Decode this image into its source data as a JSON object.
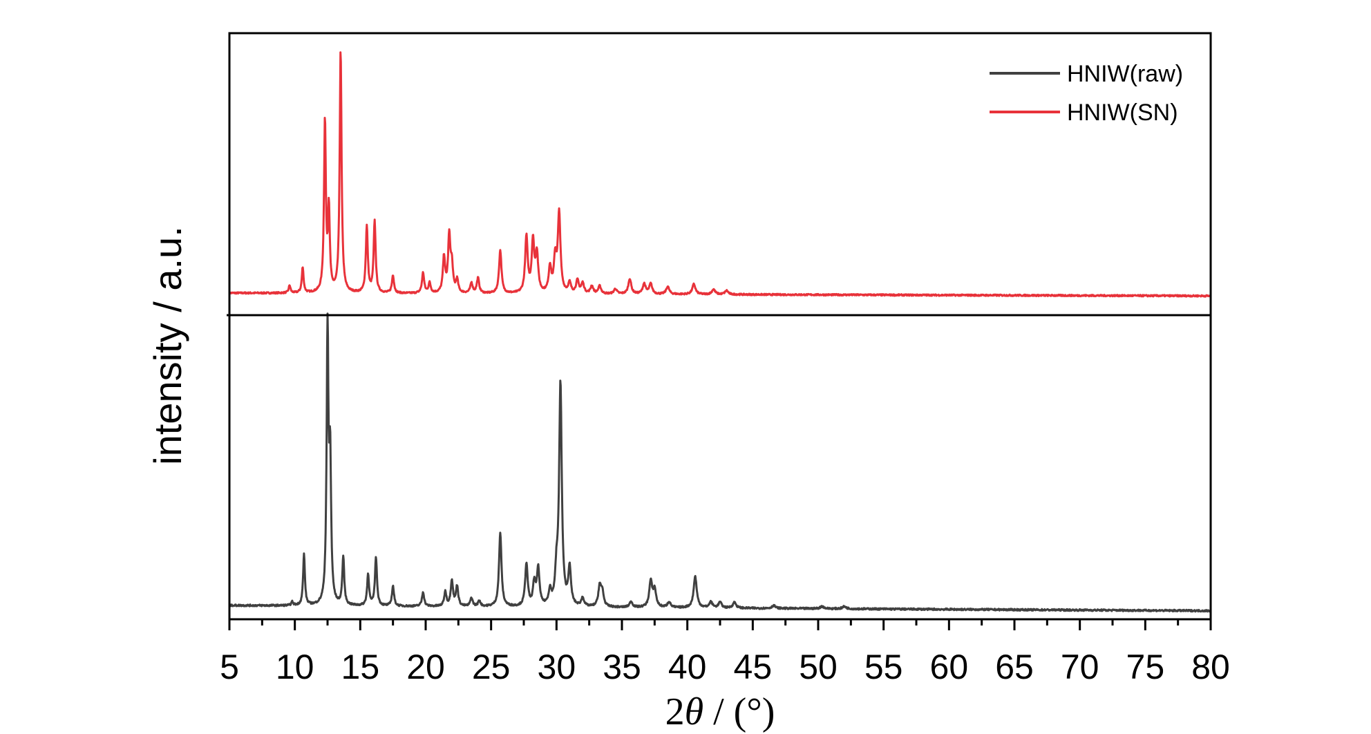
{
  "chart_data": {
    "type": "line",
    "xlabel_prefix": "2",
    "xlabel_symbol": "θ",
    "xlabel_suffix": " / (°)",
    "ylabel": "intensity / a.u.",
    "xlim": [
      5,
      80
    ],
    "xticks": [
      5,
      10,
      15,
      20,
      25,
      30,
      35,
      40,
      45,
      50,
      55,
      60,
      65,
      70,
      75,
      80
    ],
    "legend_position": "top-right",
    "series": [
      {
        "name": "HNIW(SN)",
        "color": "#e8323a",
        "panel": "top",
        "ylim": [
          0,
          1.0
        ],
        "baseline": 0.032,
        "baseline_slope": -0.00015,
        "peaks": [
          [
            9.6,
            0.03
          ],
          [
            10.6,
            0.1
          ],
          [
            12.3,
            0.67
          ],
          [
            12.6,
            0.32
          ],
          [
            13.5,
            0.95
          ],
          [
            15.5,
            0.26
          ],
          [
            16.1,
            0.28
          ],
          [
            17.5,
            0.07
          ],
          [
            19.8,
            0.08
          ],
          [
            20.3,
            0.04
          ],
          [
            21.4,
            0.14
          ],
          [
            21.8,
            0.22
          ],
          [
            22.0,
            0.1
          ],
          [
            22.4,
            0.05
          ],
          [
            23.5,
            0.04
          ],
          [
            24.0,
            0.06
          ],
          [
            25.7,
            0.17
          ],
          [
            27.7,
            0.22
          ],
          [
            28.2,
            0.2
          ],
          [
            28.5,
            0.15
          ],
          [
            29.5,
            0.1
          ],
          [
            29.9,
            0.13
          ],
          [
            30.2,
            0.31
          ],
          [
            31.0,
            0.04
          ],
          [
            31.6,
            0.05
          ],
          [
            32.0,
            0.04
          ],
          [
            32.7,
            0.03
          ],
          [
            33.3,
            0.03
          ],
          [
            34.5,
            0.02
          ],
          [
            35.6,
            0.06
          ],
          [
            36.7,
            0.04
          ],
          [
            37.2,
            0.04
          ],
          [
            38.5,
            0.03
          ],
          [
            40.5,
            0.04
          ],
          [
            42.0,
            0.02
          ],
          [
            43.0,
            0.015
          ]
        ]
      },
      {
        "name": "HNIW(raw)",
        "color": "#404040",
        "panel": "bottom",
        "ylim": [
          0,
          1.0
        ],
        "baseline": 0.07,
        "baseline_slope": -0.00025,
        "peaks": [
          [
            9.8,
            0.012
          ],
          [
            10.7,
            0.18
          ],
          [
            12.5,
            0.95
          ],
          [
            12.7,
            0.48
          ],
          [
            13.7,
            0.17
          ],
          [
            15.6,
            0.11
          ],
          [
            16.2,
            0.17
          ],
          [
            17.5,
            0.07
          ],
          [
            19.8,
            0.05
          ],
          [
            21.5,
            0.05
          ],
          [
            22.0,
            0.09
          ],
          [
            22.4,
            0.07
          ],
          [
            23.5,
            0.03
          ],
          [
            24.1,
            0.02
          ],
          [
            25.7,
            0.26
          ],
          [
            27.7,
            0.15
          ],
          [
            28.3,
            0.08
          ],
          [
            28.6,
            0.13
          ],
          [
            29.5,
            0.05
          ],
          [
            30.0,
            0.1
          ],
          [
            30.3,
            0.78
          ],
          [
            31.0,
            0.13
          ],
          [
            32.0,
            0.03
          ],
          [
            33.3,
            0.07
          ],
          [
            33.5,
            0.05
          ],
          [
            35.7,
            0.02
          ],
          [
            37.2,
            0.09
          ],
          [
            37.5,
            0.06
          ],
          [
            38.6,
            0.02
          ],
          [
            40.6,
            0.11
          ],
          [
            41.8,
            0.02
          ],
          [
            42.5,
            0.02
          ],
          [
            43.6,
            0.02
          ],
          [
            46.6,
            0.01
          ],
          [
            50.3,
            0.008
          ],
          [
            52.0,
            0.008
          ]
        ]
      }
    ]
  }
}
